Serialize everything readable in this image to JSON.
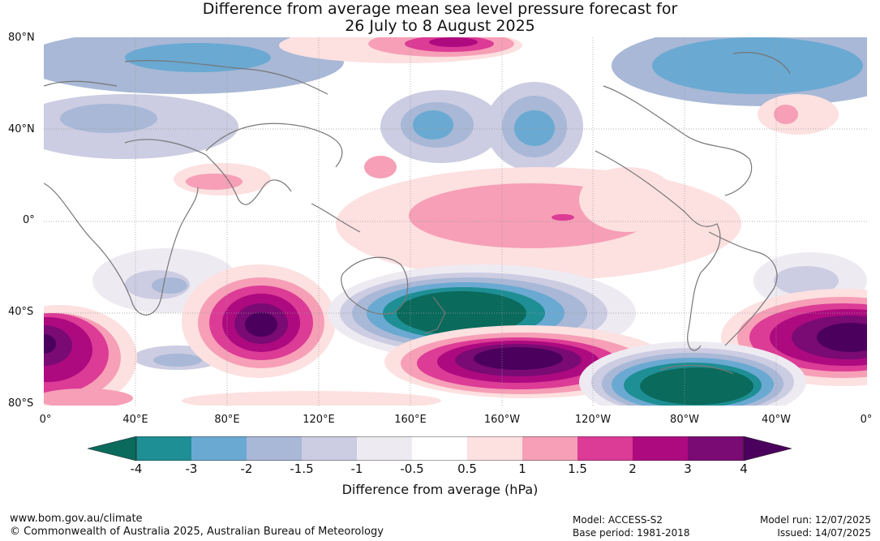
{
  "title": {
    "line1": "Difference from average mean sea level pressure forecast for",
    "line2": "26 July to 8 August 2025"
  },
  "axes": {
    "lat_labels": [
      "80°N",
      "40°N",
      "0°",
      "40°S",
      "80°S"
    ],
    "lon_labels": [
      "0°",
      "40°E",
      "80°E",
      "120°E",
      "160°E",
      "160°W",
      "120°W",
      "80°W",
      "40°W",
      "0°"
    ]
  },
  "colorbar": {
    "label": "Difference from average (hPa)",
    "ticks": [
      "-4",
      "-3",
      "-2",
      "-1.5",
      "-1",
      "-0.5",
      "0.5",
      "1",
      "1.5",
      "2",
      "3",
      "4"
    ],
    "colors": [
      "#0a6a5c",
      "#1e8f94",
      "#6aa9d2",
      "#a8b8d6",
      "#cccce2",
      "#eeeaf2",
      "#ffffff",
      "#fde0e0",
      "#f69fb6",
      "#dc3b96",
      "#ad0a80",
      "#7a0a74",
      "#4a005c"
    ]
  },
  "footer": {
    "url": "www.bom.gov.au/climate",
    "copyright": "© Commonwealth of Australia 2025, Australian Bureau of Meteorology",
    "model": "Model: ACCESS-S2",
    "base_period": "Base period: 1981-2018",
    "model_run": "Model run: 12/07/2025",
    "issued": "Issued: 14/07/2025"
  }
}
